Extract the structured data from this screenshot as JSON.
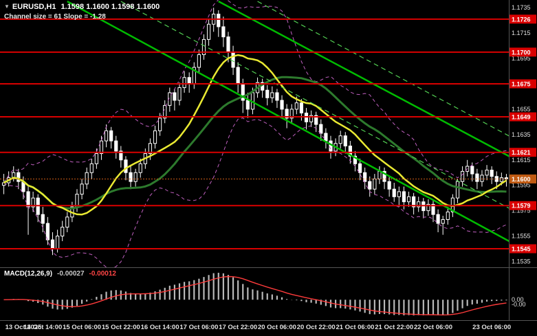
{
  "window": {
    "symbol_period": "EURUSD,H1",
    "ohlc_display": "1.1598 1.1600 1.1598 1.1600",
    "subtitle": "Channel size = 61 Slope = -1.28"
  },
  "icons": {
    "dropdown": "▼"
  },
  "colors": {
    "bg": "#000000",
    "wick": "#ffffff",
    "bull_fill": "#000000",
    "bear_fill": "#ffffff",
    "ma_fast": "#e9e932",
    "ma_slow": "#2d7a2d",
    "bands": "#c060c0",
    "level": "#d90000",
    "current": "#cf5c16",
    "current_box": "#c05a12",
    "hist": "#b9b9b9",
    "signal": "#ff3b3b",
    "axis_text": "#e2e2e2",
    "axis_line": "#555555"
  },
  "chart_data": {
    "type": "candlestick",
    "title": "EURUSD,H1",
    "xlabel": "",
    "ylabel": "",
    "y_axis": {
      "min": 1.1532,
      "max": 1.174,
      "ticks": [
        1.1735,
        1.1715,
        1.1695,
        1.1655,
        1.1635,
        1.1615,
        1.1595,
        1.1575,
        1.1555,
        1.1535
      ]
    },
    "levels": [
      1.1726,
      1.17,
      1.1675,
      1.1649,
      1.1621,
      1.1579,
      1.1545
    ],
    "current_price": 1.16,
    "x_labels": [
      {
        "label": "13 Oct 2025",
        "i": 0
      },
      {
        "label": "14 Oct 14:00",
        "i": 8
      },
      {
        "label": "15 Oct 06:00",
        "i": 16
      },
      {
        "label": "15 Oct 22:00",
        "i": 24
      },
      {
        "label": "16 Oct 14:00",
        "i": 32
      },
      {
        "label": "17 Oct 06:00",
        "i": 40
      },
      {
        "label": "17 Oct 22:00",
        "i": 48
      },
      {
        "label": "20 Oct 06:00",
        "i": 56
      },
      {
        "label": "20 Oct 22:00",
        "i": 64
      },
      {
        "label": "21 Oct 06:00",
        "i": 72
      },
      {
        "label": "21 Oct 22:00",
        "i": 80
      },
      {
        "label": "22 Oct 06:00",
        "i": 88
      },
      {
        "label": "23 Oct 06:00",
        "i": 100
      }
    ],
    "candles": [
      [
        1.1595,
        1.1604,
        1.1588,
        1.1597
      ],
      [
        1.1597,
        1.1606,
        1.1594,
        1.1601
      ],
      [
        1.1601,
        1.161,
        1.1598,
        1.1605
      ],
      [
        1.1605,
        1.1608,
        1.1592,
        1.1598
      ],
      [
        1.1598,
        1.1602,
        1.1584,
        1.159
      ],
      [
        1.159,
        1.1594,
        1.1556,
        1.1578
      ],
      [
        1.1578,
        1.159,
        1.1574,
        1.1585
      ],
      [
        1.1585,
        1.1588,
        1.1566,
        1.1572
      ],
      [
        1.1572,
        1.1578,
        1.1558,
        1.1565
      ],
      [
        1.1565,
        1.157,
        1.1548,
        1.1552
      ],
      [
        1.1552,
        1.1558,
        1.154,
        1.1545
      ],
      [
        1.1545,
        1.156,
        1.1542,
        1.1555
      ],
      [
        1.1555,
        1.1567,
        1.1551,
        1.1562
      ],
      [
        1.1562,
        1.1574,
        1.1558,
        1.157
      ],
      [
        1.157,
        1.1582,
        1.1566,
        1.1578
      ],
      [
        1.1578,
        1.1592,
        1.1574,
        1.1588
      ],
      [
        1.1588,
        1.16,
        1.1584,
        1.1596
      ],
      [
        1.1596,
        1.1609,
        1.1592,
        1.1605
      ],
      [
        1.1605,
        1.1616,
        1.16,
        1.1612
      ],
      [
        1.1612,
        1.1624,
        1.1608,
        1.162
      ],
      [
        1.162,
        1.1634,
        1.1615,
        1.163
      ],
      [
        1.163,
        1.1643,
        1.1625,
        1.1638
      ],
      [
        1.1638,
        1.1641,
        1.1624,
        1.163
      ],
      [
        1.163,
        1.1634,
        1.1616,
        1.1622
      ],
      [
        1.1622,
        1.1626,
        1.1609,
        1.1615
      ],
      [
        1.1615,
        1.1618,
        1.1599,
        1.1605
      ],
      [
        1.1605,
        1.161,
        1.1592,
        1.1598
      ],
      [
        1.1598,
        1.1608,
        1.1594,
        1.1605
      ],
      [
        1.1605,
        1.1616,
        1.1601,
        1.1612
      ],
      [
        1.1612,
        1.1624,
        1.1608,
        1.162
      ],
      [
        1.162,
        1.1632,
        1.1615,
        1.1628
      ],
      [
        1.1628,
        1.1642,
        1.1624,
        1.1638
      ],
      [
        1.1638,
        1.1652,
        1.1634,
        1.1648
      ],
      [
        1.1648,
        1.1662,
        1.1644,
        1.1658
      ],
      [
        1.1658,
        1.1672,
        1.1653,
        1.1668
      ],
      [
        1.1668,
        1.1671,
        1.1654,
        1.1662
      ],
      [
        1.1662,
        1.1676,
        1.1658,
        1.1672
      ],
      [
        1.1672,
        1.1685,
        1.1668,
        1.168
      ],
      [
        1.168,
        1.1684,
        1.1668,
        1.1675
      ],
      [
        1.1675,
        1.1692,
        1.1671,
        1.1688
      ],
      [
        1.1688,
        1.1702,
        1.1684,
        1.1698
      ],
      [
        1.1698,
        1.1714,
        1.1694,
        1.171
      ],
      [
        1.171,
        1.1726,
        1.1705,
        1.1722
      ],
      [
        1.1722,
        1.1735,
        1.1716,
        1.173
      ],
      [
        1.173,
        1.1733,
        1.1712,
        1.172
      ],
      [
        1.172,
        1.1728,
        1.1704,
        1.1712
      ],
      [
        1.1712,
        1.1716,
        1.1692,
        1.17
      ],
      [
        1.17,
        1.1705,
        1.1682,
        1.1688
      ],
      [
        1.1688,
        1.1692,
        1.1668,
        1.1675
      ],
      [
        1.1675,
        1.1679,
        1.1652,
        1.1662
      ],
      [
        1.1662,
        1.1668,
        1.1648,
        1.1655
      ],
      [
        1.1655,
        1.1672,
        1.1651,
        1.1668
      ],
      [
        1.1668,
        1.168,
        1.1664,
        1.1676
      ],
      [
        1.1676,
        1.1679,
        1.1664,
        1.167
      ],
      [
        1.167,
        1.1674,
        1.1658,
        1.1664
      ],
      [
        1.1664,
        1.1673,
        1.166,
        1.1668
      ],
      [
        1.1668,
        1.1671,
        1.1656,
        1.1662
      ],
      [
        1.1662,
        1.1666,
        1.1649,
        1.1655
      ],
      [
        1.1655,
        1.1659,
        1.164,
        1.1648
      ],
      [
        1.1648,
        1.1659,
        1.1644,
        1.1655
      ],
      [
        1.1655,
        1.1665,
        1.1651,
        1.166
      ],
      [
        1.166,
        1.1663,
        1.1646,
        1.1652
      ],
      [
        1.1652,
        1.1656,
        1.1639,
        1.1645
      ],
      [
        1.1645,
        1.1654,
        1.1641,
        1.165
      ],
      [
        1.165,
        1.1653,
        1.1637,
        1.1643
      ],
      [
        1.1643,
        1.1647,
        1.163,
        1.1636
      ],
      [
        1.1636,
        1.164,
        1.1624,
        1.163
      ],
      [
        1.163,
        1.1634,
        1.1616,
        1.1622
      ],
      [
        1.1622,
        1.1632,
        1.1618,
        1.1628
      ],
      [
        1.1628,
        1.1638,
        1.1624,
        1.1634
      ],
      [
        1.1634,
        1.1637,
        1.162,
        1.1626
      ],
      [
        1.1626,
        1.163,
        1.1612,
        1.1618
      ],
      [
        1.1618,
        1.1622,
        1.1606,
        1.1612
      ],
      [
        1.1612,
        1.1616,
        1.1599,
        1.1605
      ],
      [
        1.1605,
        1.1609,
        1.1592,
        1.1598
      ],
      [
        1.1598,
        1.1602,
        1.1586,
        1.1592
      ],
      [
        1.1592,
        1.1604,
        1.1588,
        1.16
      ],
      [
        1.16,
        1.161,
        1.1596,
        1.1606
      ],
      [
        1.1606,
        1.1609,
        1.1592,
        1.1598
      ],
      [
        1.1598,
        1.1602,
        1.1586,
        1.1592
      ],
      [
        1.1592,
        1.1597,
        1.1582,
        1.1586
      ],
      [
        1.1586,
        1.1594,
        1.1578,
        1.159
      ],
      [
        1.159,
        1.1594,
        1.1576,
        1.1582
      ],
      [
        1.1582,
        1.159,
        1.1578,
        1.1586
      ],
      [
        1.1586,
        1.1589,
        1.1572,
        1.1578
      ],
      [
        1.1578,
        1.1586,
        1.1574,
        1.1582
      ],
      [
        1.1582,
        1.1585,
        1.1569,
        1.1575
      ],
      [
        1.1575,
        1.1584,
        1.1571,
        1.158
      ],
      [
        1.158,
        1.1583,
        1.1566,
        1.1572
      ],
      [
        1.1572,
        1.1576,
        1.1558,
        1.1565
      ],
      [
        1.1565,
        1.1571,
        1.1556,
        1.1568
      ],
      [
        1.1568,
        1.1578,
        1.1564,
        1.1574
      ],
      [
        1.1574,
        1.1588,
        1.157,
        1.1585
      ],
      [
        1.1585,
        1.16,
        1.1581,
        1.1598
      ],
      [
        1.1598,
        1.161,
        1.1594,
        1.1606
      ],
      [
        1.1606,
        1.1615,
        1.1602,
        1.161
      ],
      [
        1.161,
        1.1613,
        1.1598,
        1.1604
      ],
      [
        1.1604,
        1.1608,
        1.1592,
        1.1598
      ],
      [
        1.1598,
        1.1607,
        1.1594,
        1.1603
      ],
      [
        1.1603,
        1.1611,
        1.1599,
        1.1607
      ],
      [
        1.1607,
        1.161,
        1.1596,
        1.1602
      ],
      [
        1.1602,
        1.1606,
        1.1592,
        1.1598
      ],
      [
        1.1598,
        1.1605,
        1.1595,
        1.1601
      ],
      [
        1.1601,
        1.1604,
        1.1594,
        1.16
      ]
    ],
    "overlays": {
      "ma_fast": {
        "period": 13,
        "color_ref": "ma_fast"
      },
      "ma_slow": {
        "period": 26,
        "color_ref": "ma_slow"
      },
      "bollinger": {
        "period": 16,
        "deviation": 2
      }
    },
    "channel_lines": [
      {
        "style": "solid",
        "width": 2.5,
        "color": "#00bb00",
        "from": [
          44,
          1.174
        ],
        "to": [
          104,
          1.1617
        ]
      },
      {
        "style": "solid",
        "width": 2.5,
        "color": "#00bb00",
        "from": [
          13,
          1.174
        ],
        "to": [
          104,
          1.155
        ]
      },
      {
        "style": "dashed",
        "width": 1.2,
        "color": "#53d053",
        "from": [
          52,
          1.174
        ],
        "to": [
          104,
          1.1633
        ]
      },
      {
        "style": "dashed",
        "width": 1.2,
        "color": "#53d053",
        "from": [
          24,
          1.174
        ],
        "to": [
          104,
          1.1576
        ]
      }
    ],
    "macd": {
      "label": "MACD(12,26,9)",
      "value_main": "-0.00027",
      "value_signal": "-0.00012",
      "params": [
        12,
        26,
        9
      ],
      "axis_ticks": [
        {
          "label": "0.00",
          "value": 0
        },
        {
          "label": "-0.00",
          "value": -0.0005
        }
      ]
    }
  }
}
